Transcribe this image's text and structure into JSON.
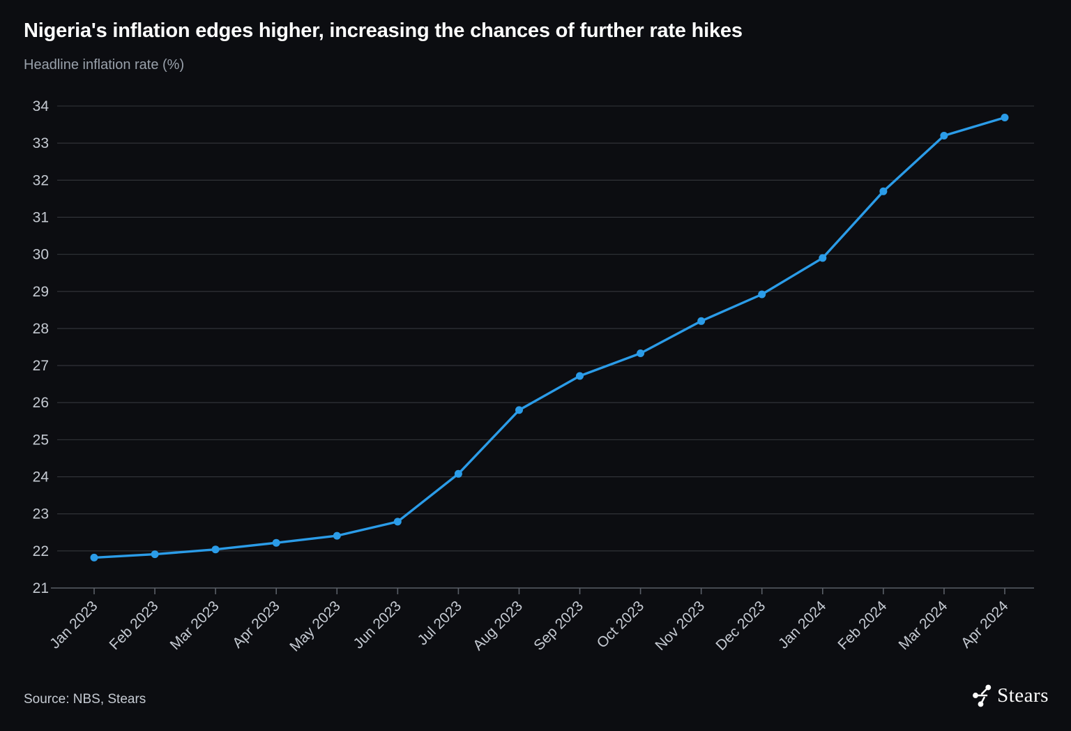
{
  "header": {
    "title": "Nigeria's inflation edges higher, increasing the chances of further rate hikes",
    "subtitle": "Headline inflation rate (%)"
  },
  "chart_data": {
    "type": "line",
    "title": "Nigeria's inflation edges higher, increasing the chances of further rate hikes",
    "subtitle_ylabel": "Headline inflation rate (%)",
    "categories": [
      "Jan 2023",
      "Feb 2023",
      "Mar 2023",
      "Apr 2023",
      "May 2023",
      "Jun 2023",
      "Jul 2023",
      "Aug 2023",
      "Sep 2023",
      "Oct 2023",
      "Nov 2023",
      "Dec 2023",
      "Jan 2024",
      "Feb 2024",
      "Mar 2024",
      "Apr 2024"
    ],
    "series": [
      {
        "name": "Headline inflation rate (%)",
        "values": [
          21.82,
          21.91,
          22.04,
          22.22,
          22.41,
          22.79,
          24.08,
          25.8,
          26.72,
          27.33,
          28.2,
          28.92,
          29.9,
          31.7,
          33.2,
          33.69
        ]
      }
    ],
    "ylim": [
      21,
      34
    ],
    "y_tick_step": 1,
    "grid": "horizontal",
    "legend": "none",
    "marker": "circle",
    "x_label_rotation": -45
  },
  "colors": {
    "background": "#0c0d11",
    "line": "#2b9ce8",
    "grid": "#34373c",
    "axis": "#5a5f67",
    "axis_labels": "#c5cad2",
    "title": "#ffffff",
    "subtitle": "#99a1ab",
    "source": "#c6cbd3"
  },
  "footer": {
    "source": "Source: NBS, Stears",
    "brand": "Stears"
  }
}
